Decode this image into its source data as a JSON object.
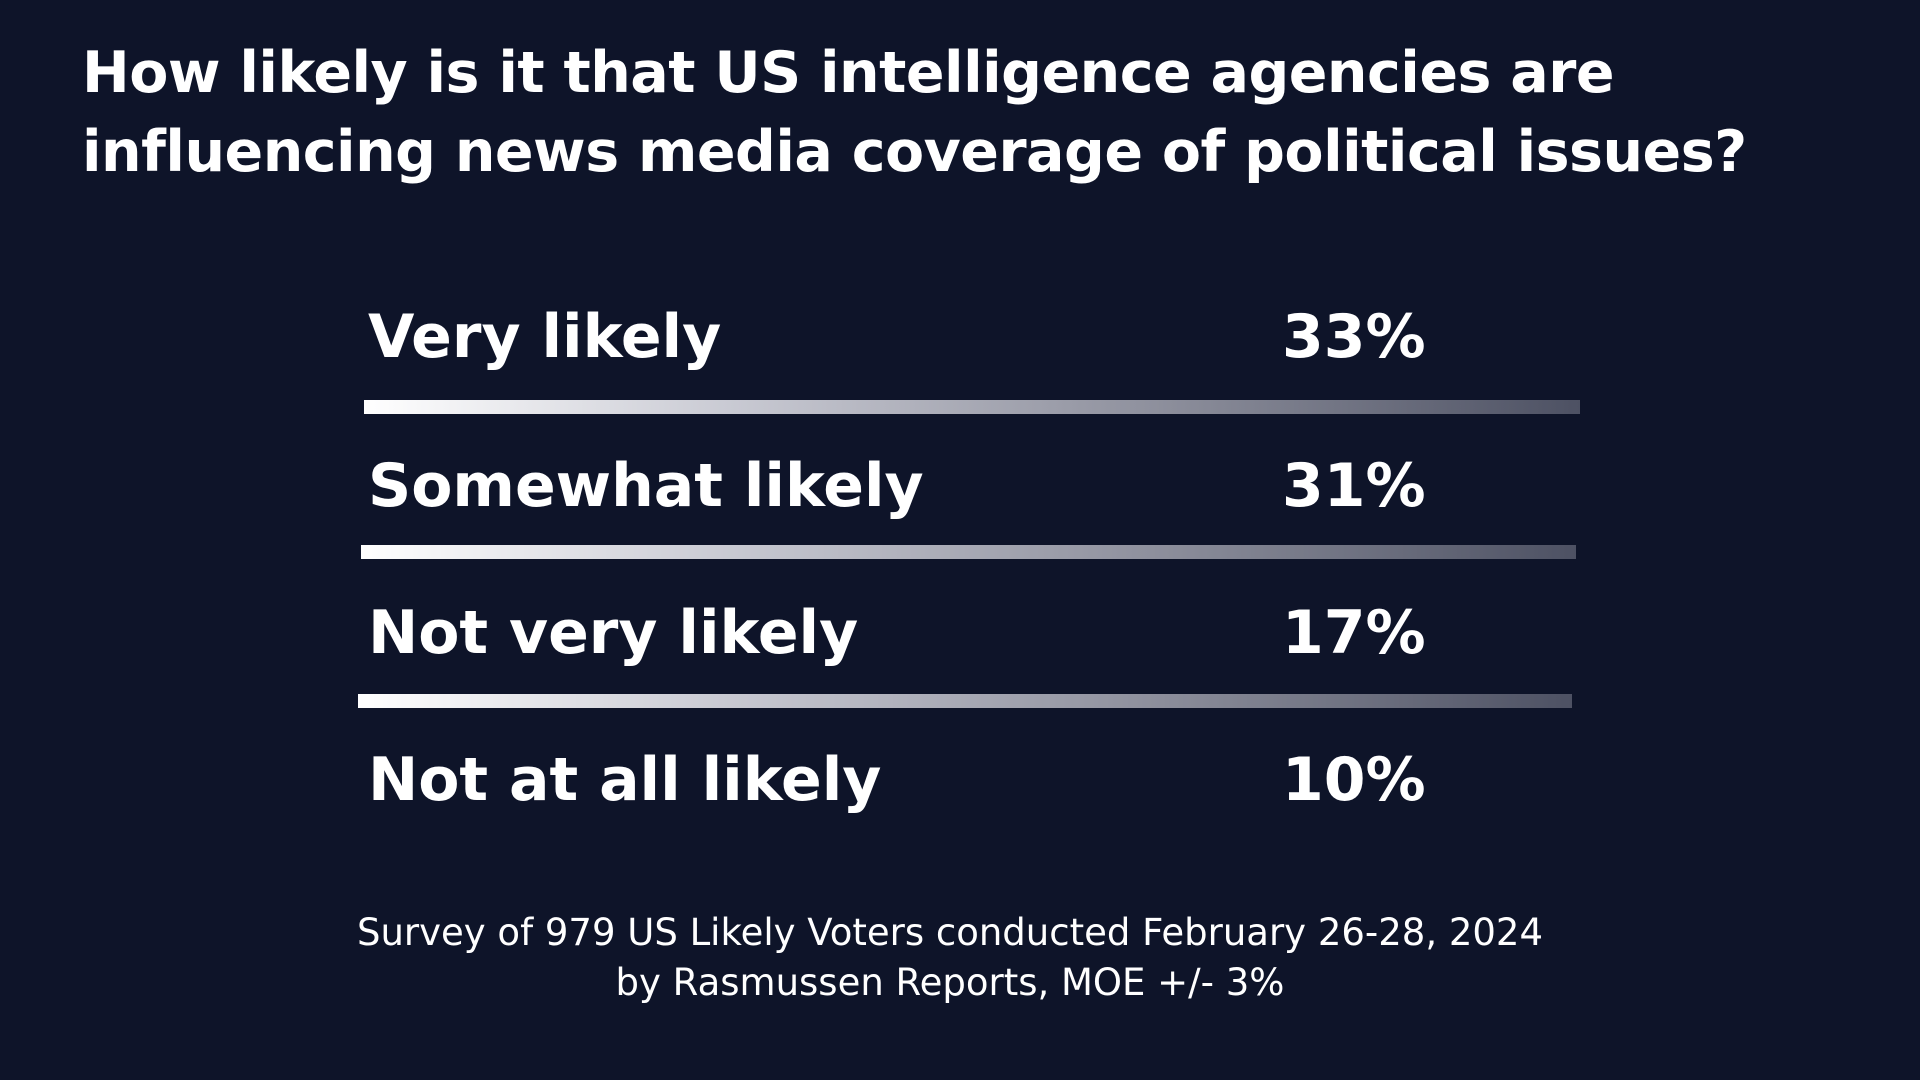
{
  "chart_data": {
    "type": "table",
    "title": "How likely is it that US intelligence agencies are influencing news media coverage of political issues?",
    "categories": [
      "Very likely",
      "Somewhat likely",
      "Not very likely",
      "Not at all likely"
    ],
    "values": [
      33,
      31,
      17,
      10
    ],
    "value_labels": [
      "33%",
      "31%",
      "17%",
      "10%"
    ],
    "footer": [
      "Survey of 979 US Likely Voters conducted February 26-28, 2024",
      "by Rasmussen Reports, MOE +/- 3%"
    ]
  },
  "colors": {
    "background": "#0e1429",
    "text": "#ffffff",
    "divider_start": "#ffffff",
    "divider_end": "#4d5163"
  }
}
